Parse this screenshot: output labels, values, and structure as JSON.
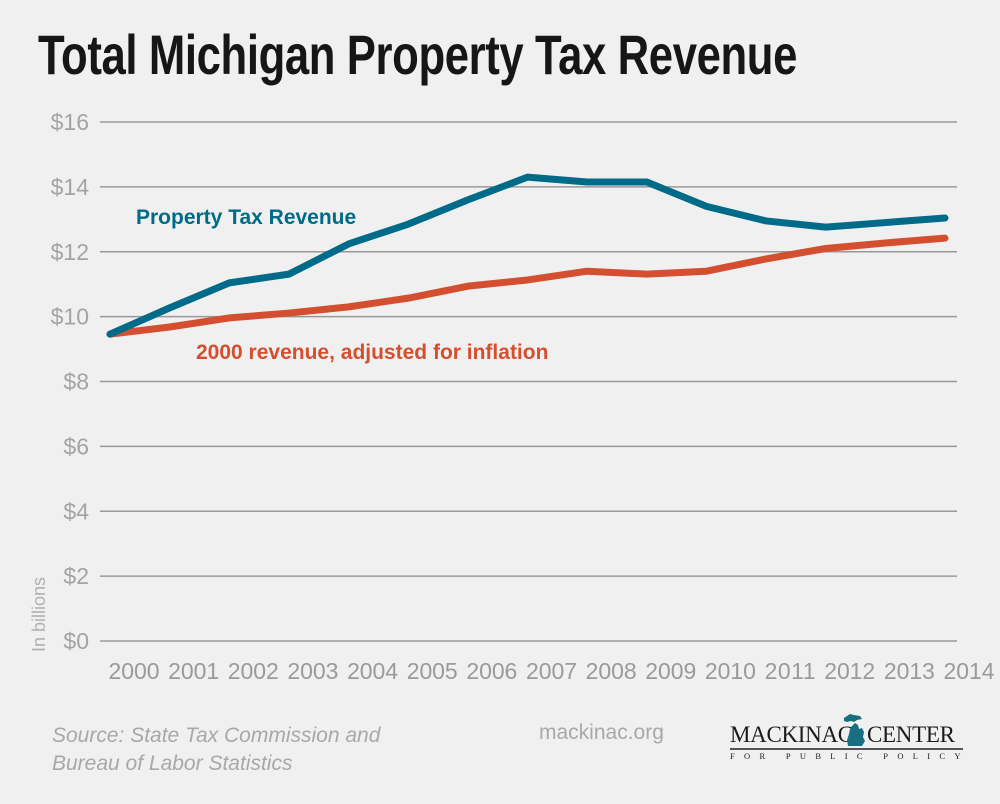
{
  "header": {
    "title": "Total Michigan Property Tax Revenue"
  },
  "footer": {
    "source_lines": [
      "Source: State Tax Commission and",
      "Bureau of Labor Statistics"
    ],
    "website": "mackinac.org",
    "logo": {
      "name_left": "MACKINAC",
      "name_right": "CENTER",
      "tagline": "FOR PUBLIC POLICY",
      "icon": "michigan-map-icon",
      "icon_color": "#1a6e82"
    }
  },
  "chart_data": {
    "type": "line",
    "title": "Total Michigan Property Tax Revenue",
    "xlabel": "",
    "ylabel": "In billions",
    "x": [
      2000,
      2001,
      2002,
      2003,
      2004,
      2005,
      2006,
      2007,
      2008,
      2009,
      2010,
      2011,
      2012,
      2013,
      2014
    ],
    "x_tick_labels": [
      "2000",
      "2001",
      "2002",
      "2003",
      "2004",
      "2005",
      "2006",
      "2007",
      "2008",
      "2009",
      "2010",
      "2011",
      "2012",
      "2013",
      "2014"
    ],
    "ylim": [
      0,
      16
    ],
    "y_ticks": [
      0,
      2,
      4,
      6,
      8,
      10,
      12,
      14,
      16
    ],
    "y_tick_labels": [
      "$0",
      "$2",
      "$4",
      "$6",
      "$8",
      "$10",
      "$12",
      "$14",
      "$16"
    ],
    "grid": true,
    "legend": "inline labels",
    "series": [
      {
        "name": "Property Tax Revenue",
        "color": "#006b89",
        "values": [
          9.46,
          10.27,
          11.04,
          11.31,
          12.24,
          12.85,
          13.6,
          14.3,
          14.15,
          14.15,
          13.4,
          12.95,
          12.76,
          12.9,
          13.04
        ]
      },
      {
        "name": "2000 revenue, adjusted for inflation",
        "color": "#d44f2f",
        "values": [
          9.46,
          9.68,
          9.96,
          10.11,
          10.3,
          10.57,
          10.94,
          11.13,
          11.4,
          11.31,
          11.4,
          11.78,
          12.1,
          12.27,
          12.42
        ]
      }
    ]
  }
}
